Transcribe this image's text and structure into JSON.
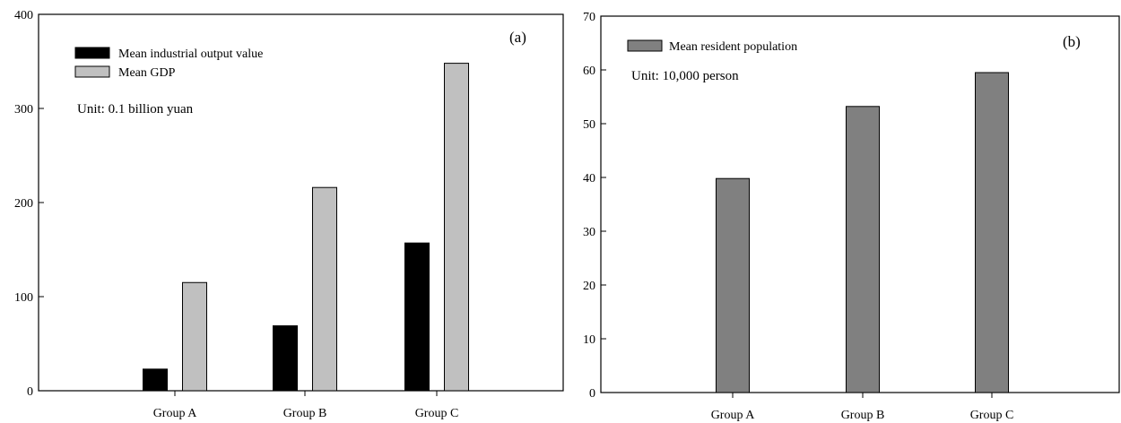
{
  "chart_data": [
    {
      "type": "bar",
      "panel_label": "(a)",
      "unit_note": "Unit: 0.1 billion yuan",
      "categories": [
        "Group A",
        "Group B",
        "Group C"
      ],
      "series": [
        {
          "name": "Mean industrial output value",
          "color": "#000000",
          "values": [
            23,
            69,
            157
          ]
        },
        {
          "name": "Mean GDP",
          "color": "#c0c0c0",
          "values": [
            115,
            216,
            348
          ]
        }
      ],
      "ylim": [
        0,
        400
      ],
      "yticks": [
        0,
        100,
        200,
        300,
        400
      ],
      "legend": "top-left",
      "grid": false
    },
    {
      "type": "bar",
      "panel_label": "(b)",
      "unit_note": "Unit: 10,000 person",
      "categories": [
        "Group A",
        "Group B",
        "Group C"
      ],
      "series": [
        {
          "name": "Mean resident population",
          "color": "#808080",
          "values": [
            39.8,
            53.2,
            59.5
          ]
        }
      ],
      "ylim": [
        0,
        70
      ],
      "yticks": [
        0,
        10,
        20,
        30,
        40,
        50,
        60,
        70
      ],
      "legend": "top-left",
      "grid": false
    }
  ]
}
